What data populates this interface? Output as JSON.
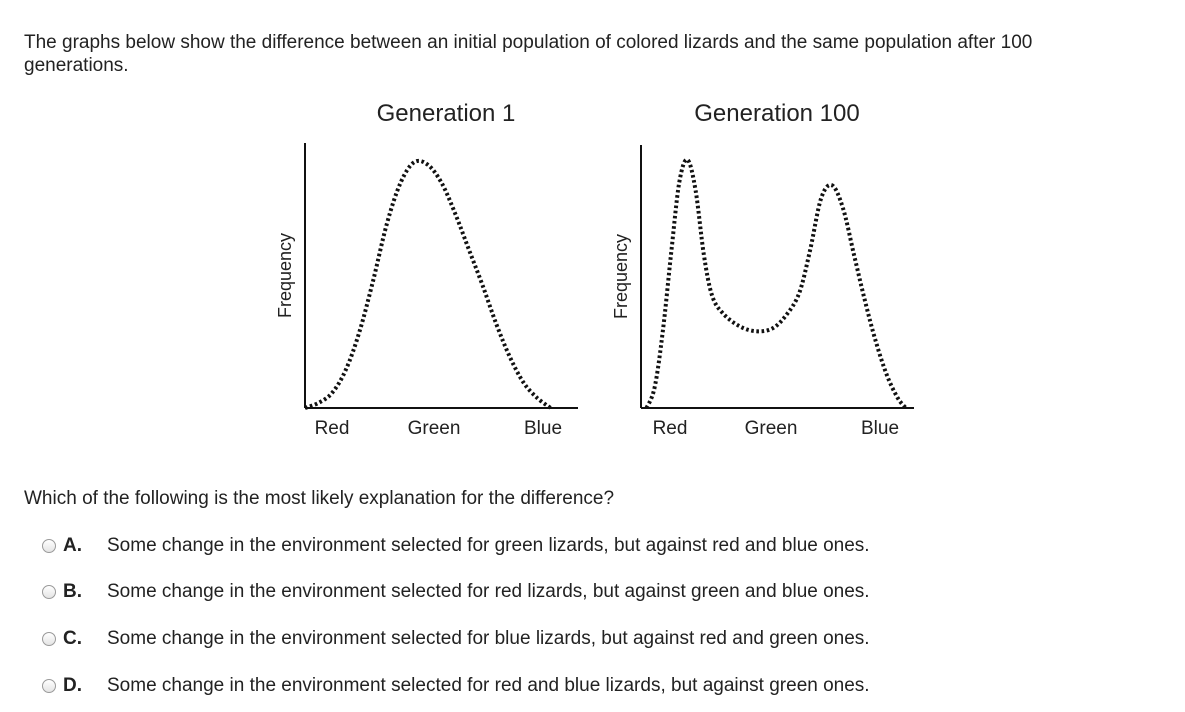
{
  "intro": "The graphs below show the difference between an initial population of colored lizards and the same population after 100 generations.",
  "question": "Which of the following is the most likely explanation for the difference?",
  "options": [
    {
      "letter": "A.",
      "text": "Some change in the environment selected for green lizards, but against red and blue ones."
    },
    {
      "letter": "B.",
      "text": "Some change in the environment selected for red lizards, but against green and blue ones."
    },
    {
      "letter": "C.",
      "text": "Some change in the environment selected for blue lizards, but against red and green ones."
    },
    {
      "letter": "D.",
      "text": "Some change in the environment selected for red and blue lizards, but against green ones."
    }
  ],
  "chart_data": [
    {
      "type": "line",
      "title": "Generation 1",
      "ylabel": "Frequency",
      "xlabel": "",
      "categories": [
        "Red",
        "Green",
        "Blue"
      ],
      "xlim": [
        0,
        1
      ],
      "ylim": [
        0,
        1
      ],
      "line_style": "dotted",
      "series": [
        {
          "x": [
            0,
            0.05,
            0.1,
            0.15,
            0.2,
            0.25,
            0.3,
            0.35,
            0.4,
            0.45,
            0.5,
            0.55,
            0.6,
            0.65,
            0.7,
            0.75,
            0.8,
            0.85,
            0.9
          ],
          "values": [
            0.0,
            0.02,
            0.06,
            0.15,
            0.3,
            0.5,
            0.72,
            0.88,
            0.96,
            0.95,
            0.88,
            0.76,
            0.62,
            0.48,
            0.33,
            0.2,
            0.1,
            0.04,
            0.0
          ]
        }
      ]
    },
    {
      "type": "line",
      "title": "Generation 100",
      "ylabel": "Frequency",
      "xlabel": "",
      "categories": [
        "Red",
        "Green",
        "Blue"
      ],
      "xlim": [
        0,
        1
      ],
      "ylim": [
        0,
        1
      ],
      "line_style": "dotted",
      "series": [
        {
          "x": [
            0.02,
            0.05,
            0.08,
            0.11,
            0.14,
            0.17,
            0.2,
            0.23,
            0.26,
            0.3,
            0.36,
            0.42,
            0.48,
            0.53,
            0.58,
            0.62,
            0.66,
            0.7,
            0.74,
            0.78,
            0.82,
            0.86,
            0.9,
            0.94,
            0.97
          ],
          "values": [
            0.0,
            0.08,
            0.3,
            0.6,
            0.88,
            0.97,
            0.85,
            0.6,
            0.44,
            0.37,
            0.32,
            0.3,
            0.31,
            0.36,
            0.45,
            0.62,
            0.82,
            0.87,
            0.78,
            0.6,
            0.42,
            0.26,
            0.13,
            0.04,
            0.0
          ]
        }
      ]
    }
  ]
}
